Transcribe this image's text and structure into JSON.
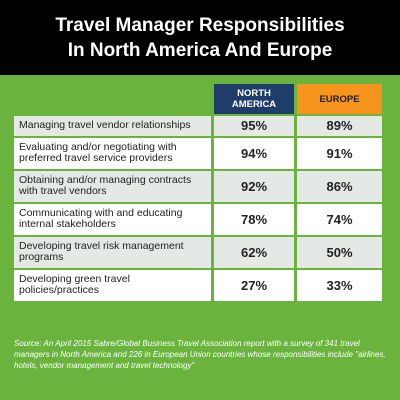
{
  "header": {
    "title": "Travel Manager Responsibilities In North America And Europe"
  },
  "table": {
    "columns": [
      "NORTH AMERICA",
      "EUROPE"
    ],
    "rows": [
      [
        "Managing travel vendor relationships",
        "95%",
        "89%"
      ],
      [
        "Evaluating and/or negotiating with preferred travel service providers",
        "94%",
        "91%"
      ],
      [
        "Obtaining and/or managing contracts with travel vendors",
        "92%",
        "86%"
      ],
      [
        "Communicating with and educating internal stakeholders",
        "78%",
        "74%"
      ],
      [
        "Developing travel risk management programs",
        "62%",
        "50%"
      ],
      [
        "Developing green travel policies/practices",
        "27%",
        "33%"
      ]
    ]
  },
  "source": "Source: An April 2015 Sabre/Global Business Travel Association report with a survey of 341 travel managers in North America and 226 in European Union countries whose responsibilities include \"airlines, hotels, vendor management and travel technology\""
}
